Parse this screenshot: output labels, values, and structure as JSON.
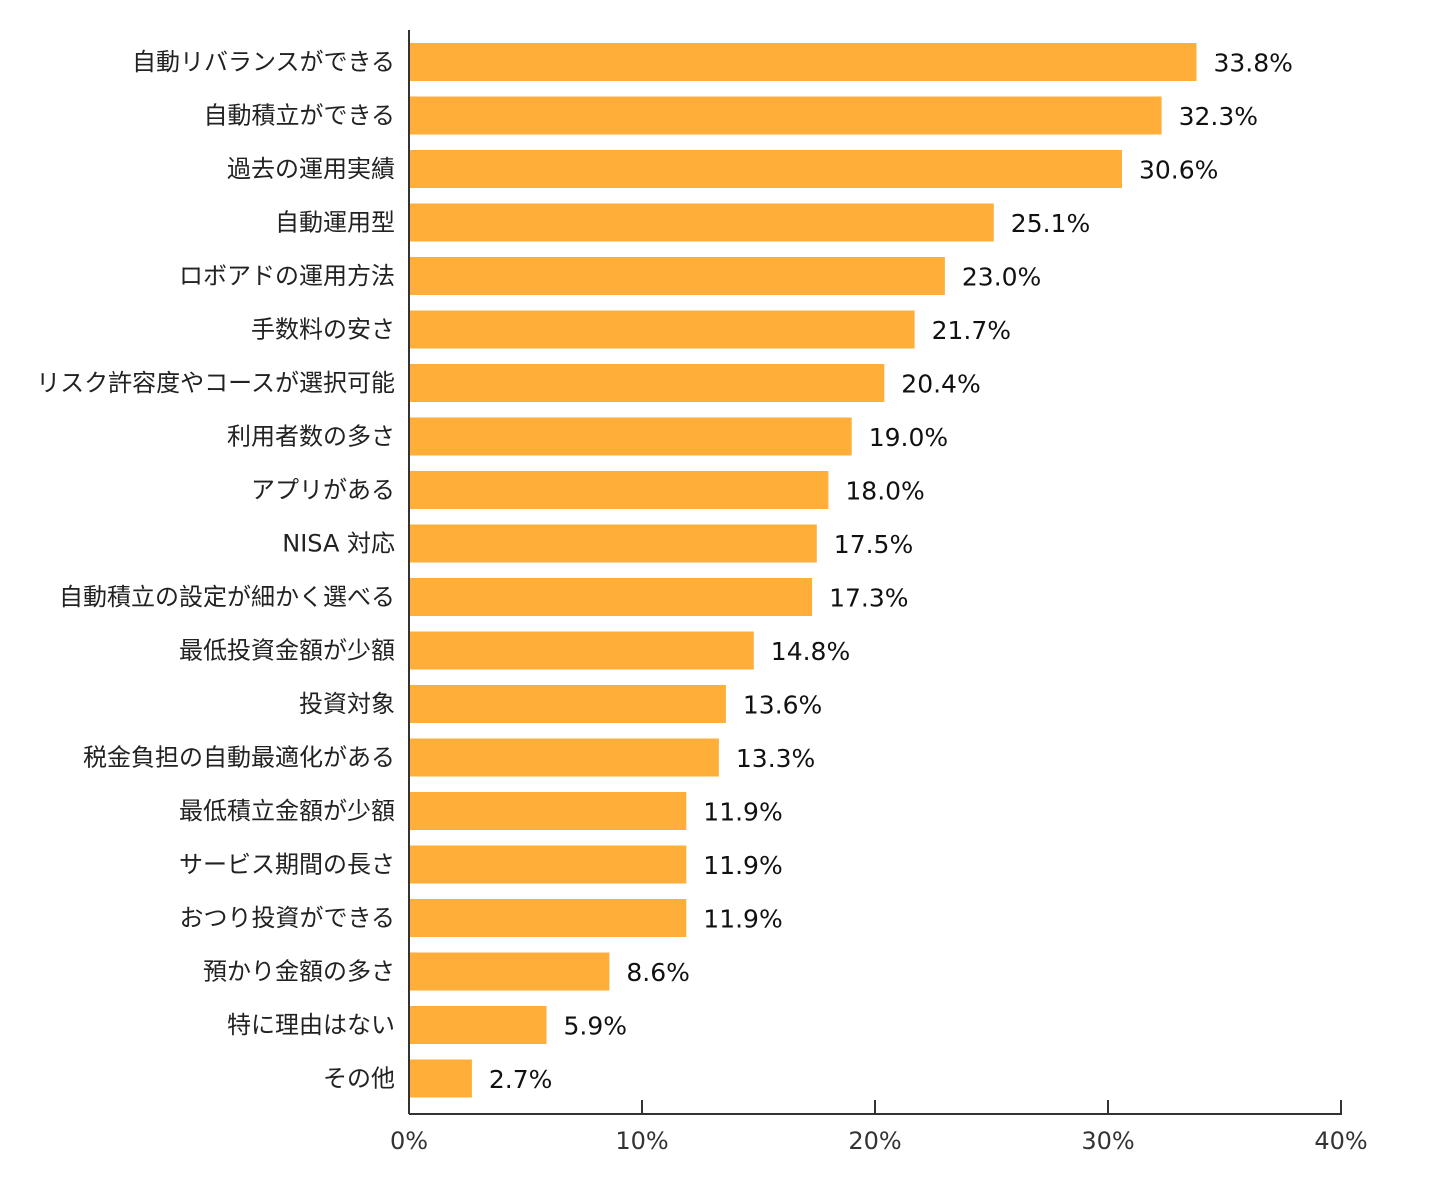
{
  "chart_data": {
    "type": "bar",
    "orientation": "horizontal",
    "title": "",
    "xlabel": "",
    "ylabel": "",
    "categories": [
      "自動リバランスができる",
      "自動積立ができる",
      "過去の運用実績",
      "自動運用型",
      "ロボアドの運用方法",
      "手数料の安さ",
      "リスク許容度やコースが選択可能",
      "利用者数の多さ",
      "アプリがある",
      "NISA 対応",
      "自動積立の設定が細かく選べる",
      "最低投資金額が少額",
      "投資対象",
      "税金負担の自動最適化がある",
      "最低積立金額が少額",
      "サービス期間の長さ",
      "おつり投資ができる",
      "預かり金額の多さ",
      "特に理由はない",
      "その他"
    ],
    "values": [
      33.8,
      32.3,
      30.6,
      25.1,
      23.0,
      21.7,
      20.4,
      19.0,
      18.0,
      17.5,
      17.3,
      14.8,
      13.6,
      13.3,
      11.9,
      11.9,
      11.9,
      8.6,
      5.9,
      2.7
    ],
    "value_labels": [
      "33.8%",
      "32.3%",
      "30.6%",
      "25.1%",
      "23.0%",
      "21.7%",
      "20.4%",
      "19.0%",
      "18.0%",
      "17.5%",
      "17.3%",
      "14.8%",
      "13.6%",
      "13.3%",
      "11.9%",
      "11.9%",
      "11.9%",
      "8.6%",
      "5.9%",
      "2.7%"
    ],
    "xlim": [
      0,
      40
    ],
    "xticks": [
      0,
      10,
      20,
      30,
      40
    ],
    "xtick_labels": [
      "0%",
      "10%",
      "20%",
      "30%",
      "40%"
    ],
    "grid": false,
    "legend": "none",
    "bar_color": "#FFAF39",
    "axis_color": "#333333"
  }
}
